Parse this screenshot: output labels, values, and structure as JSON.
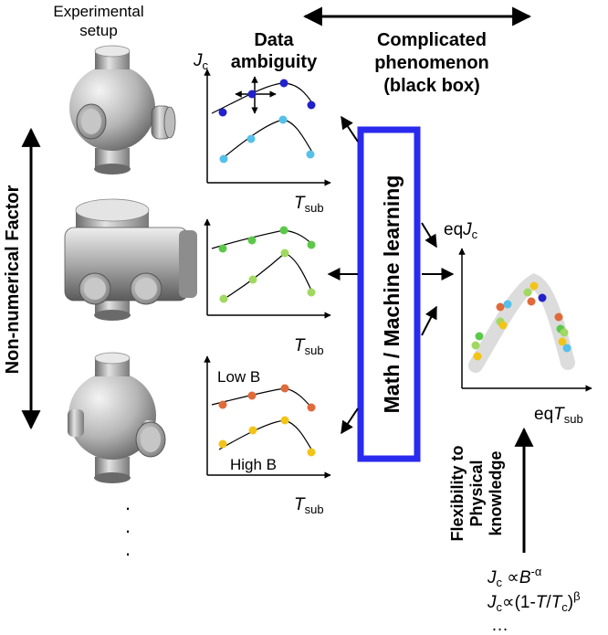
{
  "labels": {
    "experimental_setup_line1": "Experimental",
    "experimental_setup_line2": "setup",
    "data_ambiguity_line1": "Data",
    "data_ambiguity_line2": "ambiguity",
    "complicated_line1": "Complicated",
    "complicated_line2": "phenomenon",
    "complicated_line3": "(black box)",
    "non_numerical_factor": "Non-numerical Factor",
    "math_ml": "Math / Machine learning",
    "low_b": "Low B",
    "high_b": "High B",
    "flexibility_line1": "Flexibility to",
    "flexibility_line2": "Physical",
    "flexibility_line3": "knowledge",
    "ellipsis_dot": "·",
    "ellipsis_text": "…"
  },
  "axis": {
    "jc_main": "J",
    "jc_sub": "c",
    "tsub_main": "T",
    "tsub_sub": "sub",
    "eq_prefix": "eq",
    "eq_jc_main": "J",
    "eq_jc_sub": "c",
    "eq_tsub_main": "T",
    "eq_tsub_sub": "sub"
  },
  "formulas": {
    "f1_j": "J",
    "f1_c": "c",
    "f1_prop": " ∝",
    "f1_b": "B",
    "f1_exp": "-α",
    "f2_j": "J",
    "f2_c": "c",
    "f2_rest1": "∝(1-",
    "f2_t": "T",
    "f2_slash": "/",
    "f2_tc": "T",
    "f2_tcsub": "c",
    "f2_close": ")",
    "f2_exp": "β"
  },
  "colors": {
    "blue_dark": "#2222cc",
    "blue_light": "#55c0ea",
    "green": "#5cc84a",
    "green_light": "#a0d860",
    "orange": "#e06a3a",
    "yellow": "#f2c418",
    "ml_box_border": "#2a2aee"
  }
}
